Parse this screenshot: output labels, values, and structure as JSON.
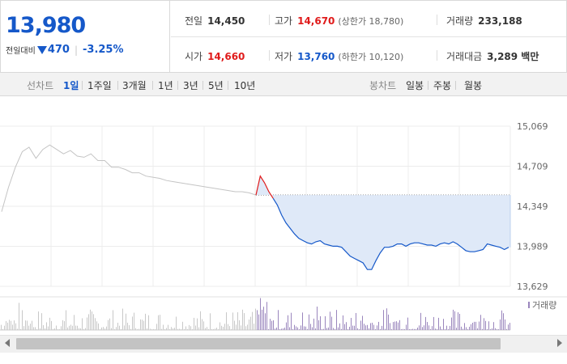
{
  "quote": {
    "price": "13,980",
    "change_label": "전일대비",
    "change_value": "470",
    "change_rate": "-3.25%"
  },
  "stats": {
    "prev_close": {
      "label": "전일",
      "value": "14,450"
    },
    "high": {
      "label": "고가",
      "value": "14,670",
      "limit_label": "(상한가 18,780)"
    },
    "volume": {
      "label": "거래량",
      "value": "233,188"
    },
    "open": {
      "label": "시가",
      "value": "14,660"
    },
    "low": {
      "label": "저가",
      "value": "13,760",
      "limit_label": "(하한가 10,120)"
    },
    "amount": {
      "label": "거래대금",
      "value": "3,289 백만"
    }
  },
  "period_tabs": {
    "caption": "선차트",
    "items": [
      "1일",
      "1주일",
      "3개월",
      "1년",
      "3년",
      "5년",
      "10년"
    ],
    "active": "1일"
  },
  "candle_tabs": {
    "caption": "봉차트",
    "items": [
      "일봉",
      "주봉",
      "월봉"
    ]
  },
  "colors": {
    "up": "#e01b1b",
    "down": "#1558c9",
    "prev_day_line": "#c4c4c4",
    "fill": "#dfe9f8",
    "volume_prev": "#c8c8c8",
    "volume_today": "#9a86bd"
  },
  "chart_data": {
    "type": "line",
    "ylim": [
      13629,
      15069
    ],
    "y_ticks": [
      "15,069",
      "14,709",
      "14,349",
      "13,989",
      "13,629"
    ],
    "reference_price": 14450,
    "volume_legend": "거래량",
    "series": [
      {
        "period": "previous_day",
        "values": [
          14300,
          14520,
          14700,
          14840,
          14880,
          14780,
          14860,
          14900,
          14860,
          14820,
          14850,
          14800,
          14790,
          14820,
          14760,
          14760,
          14700,
          14700,
          14680,
          14650,
          14650,
          14620,
          14610,
          14600,
          14580,
          14570,
          14560,
          14550,
          14540,
          14530,
          14520,
          14510,
          14500,
          14490,
          14480,
          14480,
          14470,
          14450
        ]
      },
      {
        "period": "today",
        "values": [
          14450,
          14620,
          14560,
          14480,
          14420,
          14360,
          14270,
          14200,
          14150,
          14100,
          14060,
          14040,
          14020,
          14010,
          14030,
          14040,
          14010,
          14000,
          13990,
          13990,
          13980,
          13940,
          13900,
          13880,
          13860,
          13840,
          13780,
          13780,
          13860,
          13930,
          13980,
          13980,
          13990,
          14010,
          14010,
          13990,
          14010,
          14020,
          14020,
          14010,
          14000,
          14000,
          13990,
          14010,
          14020,
          14010,
          14030,
          14010,
          13980,
          13950,
          13940,
          13940,
          13950,
          13960,
          14010,
          14000,
          13990,
          13980,
          13960,
          13980
        ]
      }
    ]
  }
}
